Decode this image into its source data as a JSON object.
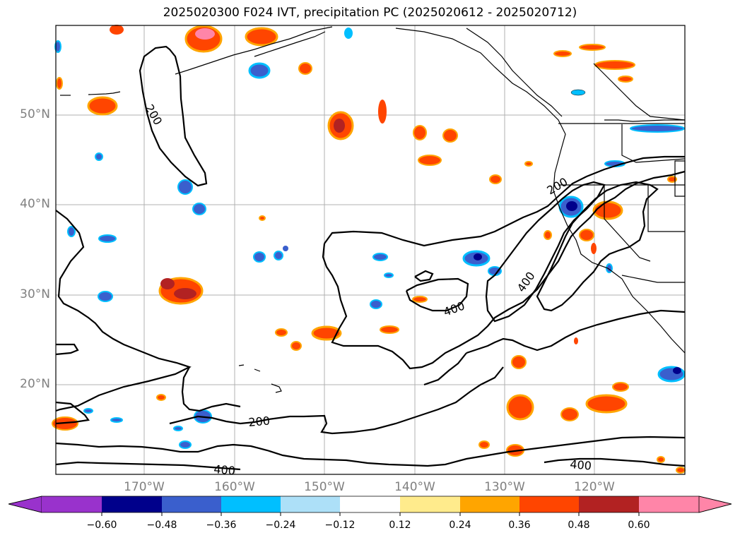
{
  "title": "2025020300 F024 IVT, precipitation PC (2025020612 - 2025020712)",
  "map": {
    "lat_labels": [
      "50°N",
      "40°N",
      "30°N",
      "20°N"
    ],
    "lon_labels": [
      "170°W",
      "160°W",
      "150°W",
      "140°W",
      "130°W",
      "120°W"
    ],
    "contour_labels": [
      "200",
      "200",
      "400",
      "400",
      "200",
      "400",
      "400"
    ]
  },
  "colorbar": {
    "ticks": [
      "−0.60",
      "−0.48",
      "−0.36",
      "−0.24",
      "−0.12",
      "0.12",
      "0.24",
      "0.36",
      "0.48",
      "0.60"
    ],
    "colors": [
      "#9932CC",
      "#00008B",
      "#3A5FCD",
      "#00BFFF",
      "#ADE0F8",
      "#FFFFFF",
      "#FFEB8C",
      "#FFA500",
      "#FF4500",
      "#B22222",
      "#FF85A8"
    ]
  }
}
